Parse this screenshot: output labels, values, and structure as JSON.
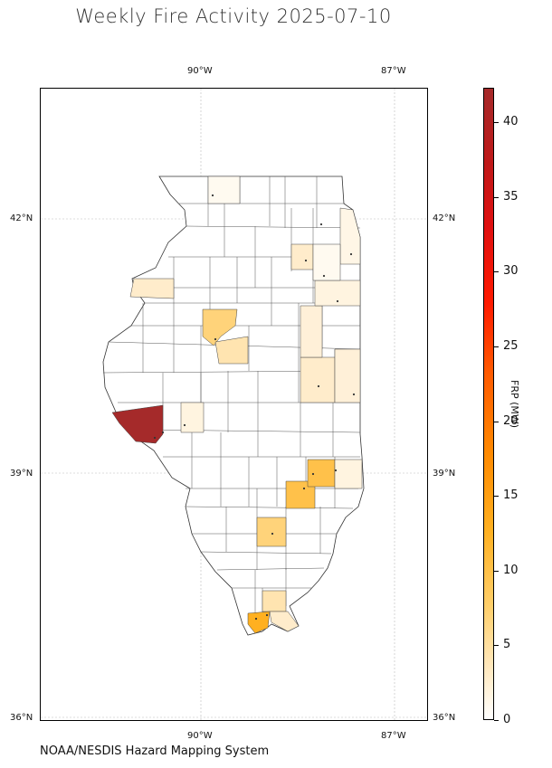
{
  "title": "Weekly Fire Activity 2025-07-10",
  "source": "NOAA/NESDIS Hazard Mapping System",
  "map": {
    "region": "Illinois counties",
    "lon_labels": [
      "90°W",
      "87°W"
    ],
    "lat_labels": [
      "42°N",
      "39°N",
      "36°N"
    ],
    "gridlines": true
  },
  "colorbar": {
    "label": "FRP (MW)",
    "ticks": [
      "0",
      "5",
      "10",
      "15",
      "20",
      "25",
      "30",
      "35",
      "40"
    ],
    "min": 0,
    "max": 42.3,
    "colormap": [
      "#ffffff",
      "#ffcf6a",
      "#ff8a00",
      "#ff1a00",
      "#a52a2a"
    ]
  }
}
